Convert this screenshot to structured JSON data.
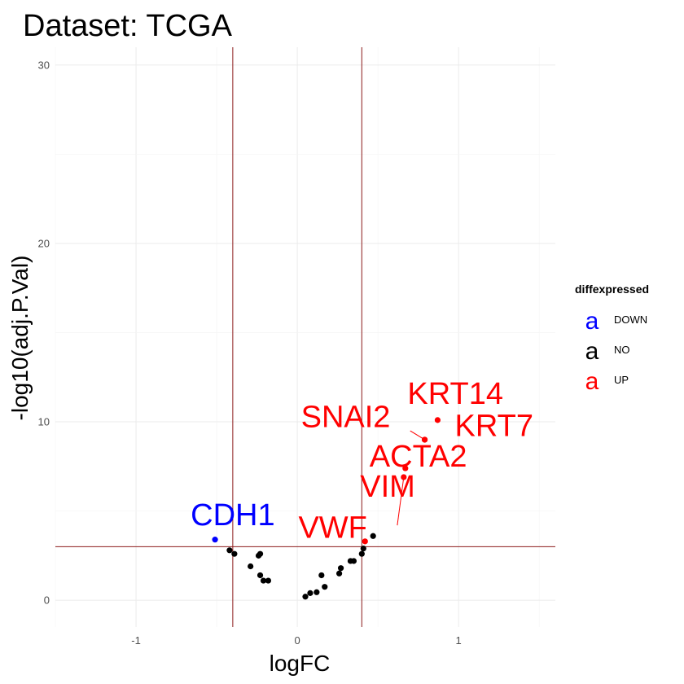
{
  "chart_data": {
    "type": "scatter",
    "title": "Dataset: TCGA",
    "xlabel": "logFC",
    "ylabel": "-log10(adj.P.Val)",
    "xlim": [
      -1.5,
      1.6
    ],
    "ylim": [
      -1.5,
      31
    ],
    "x_ticks": [
      -1,
      0,
      1
    ],
    "x_tick_labels": [
      "-1",
      "0",
      "1"
    ],
    "y_ticks": [
      0,
      10,
      20,
      30
    ],
    "y_tick_labels": [
      "0",
      "10",
      "20",
      "30"
    ],
    "grid": true,
    "vlines": [
      -0.4,
      0.4
    ],
    "hline": 3,
    "legend": {
      "title": "diffexpressed",
      "position": "right",
      "key_glyph": "a",
      "entries": [
        {
          "name": "DOWN",
          "color": "#0000ff"
        },
        {
          "name": "NO",
          "color": "#000000"
        },
        {
          "name": "UP",
          "color": "#ff0000"
        }
      ]
    },
    "colors": {
      "DOWN": "#0000ff",
      "NO": "#000000",
      "UP": "#ff0000"
    },
    "points": [
      {
        "x": -0.51,
        "y": 3.4,
        "group": "DOWN",
        "label": "CDH1",
        "lx": -0.4,
        "ly": 4.2
      },
      {
        "x": 0.87,
        "y": 10.1,
        "group": "UP",
        "label": "KRT14",
        "lx": 0.98,
        "ly": 11.0
      },
      {
        "x": 0.79,
        "y": 9.0,
        "group": "UP",
        "label": "KRT7",
        "lx": 1.22,
        "ly": 9.2
      },
      {
        "x": 0.79,
        "y": 9.0,
        "group": "UP",
        "label": "SNAI2",
        "lx": 0.3,
        "ly": 9.7,
        "leader": [
          0.7,
          9.5
        ]
      },
      {
        "x": 0.67,
        "y": 7.4,
        "group": "UP",
        "label": "ACTA2",
        "lx": 0.75,
        "ly": 7.5
      },
      {
        "x": 0.66,
        "y": 6.9,
        "group": "UP",
        "label": "VIM",
        "lx": 0.56,
        "ly": 5.8,
        "leader": [
          0.62,
          4.2
        ]
      },
      {
        "x": 0.42,
        "y": 3.3,
        "group": "UP",
        "label": "VWF",
        "lx": 0.22,
        "ly": 3.5
      },
      {
        "x": -0.42,
        "y": 2.8,
        "group": "NO"
      },
      {
        "x": -0.39,
        "y": 2.6,
        "group": "NO"
      },
      {
        "x": -0.29,
        "y": 1.9,
        "group": "NO"
      },
      {
        "x": -0.24,
        "y": 2.5,
        "group": "NO"
      },
      {
        "x": -0.23,
        "y": 2.6,
        "group": "NO"
      },
      {
        "x": -0.23,
        "y": 1.4,
        "group": "NO"
      },
      {
        "x": -0.21,
        "y": 1.1,
        "group": "NO"
      },
      {
        "x": -0.18,
        "y": 1.1,
        "group": "NO"
      },
      {
        "x": 0.05,
        "y": 0.2,
        "group": "NO"
      },
      {
        "x": 0.08,
        "y": 0.4,
        "group": "NO"
      },
      {
        "x": 0.12,
        "y": 0.45,
        "group": "NO"
      },
      {
        "x": 0.15,
        "y": 1.4,
        "group": "NO"
      },
      {
        "x": 0.17,
        "y": 0.75,
        "group": "NO"
      },
      {
        "x": 0.26,
        "y": 1.5,
        "group": "NO"
      },
      {
        "x": 0.27,
        "y": 1.8,
        "group": "NO"
      },
      {
        "x": 0.33,
        "y": 2.2,
        "group": "NO"
      },
      {
        "x": 0.35,
        "y": 2.2,
        "group": "NO"
      },
      {
        "x": 0.4,
        "y": 2.6,
        "group": "NO"
      },
      {
        "x": 0.41,
        "y": 2.9,
        "group": "NO"
      },
      {
        "x": 0.47,
        "y": 3.6,
        "group": "NO"
      }
    ]
  }
}
